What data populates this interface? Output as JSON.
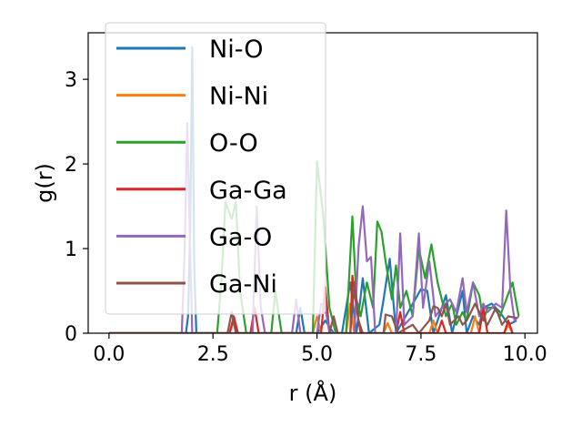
{
  "chart_data": {
    "type": "line",
    "xlabel": "r (Å)",
    "ylabel": "g(r)",
    "xlim": [
      -0.5,
      10.3
    ],
    "ylim": [
      0,
      3.55
    ],
    "xticks": [
      "0.0",
      "2.5",
      "5.0",
      "7.5",
      "10.0"
    ],
    "yticks": [
      "0",
      "1",
      "2",
      "3"
    ],
    "grid": false,
    "legend_placement": "upper-left",
    "series": [
      {
        "name": "Ni-O",
        "color": "#1f77b4",
        "points": [
          [
            0,
            0
          ],
          [
            1.85,
            0
          ],
          [
            1.9,
            0.2
          ],
          [
            1.95,
            1.2
          ],
          [
            2.0,
            3.38
          ],
          [
            2.05,
            0.8
          ],
          [
            2.1,
            0
          ],
          [
            4.5,
            0
          ],
          [
            4.6,
            0.3
          ],
          [
            4.7,
            0
          ],
          [
            5.0,
            0
          ],
          [
            5.2,
            0.15
          ],
          [
            5.4,
            0
          ],
          [
            5.6,
            0
          ],
          [
            5.8,
            0.6
          ],
          [
            5.95,
            0
          ],
          [
            6.1,
            0.65
          ],
          [
            6.25,
            0
          ],
          [
            6.5,
            0.1
          ],
          [
            6.6,
            0.4
          ],
          [
            6.75,
            0.88
          ],
          [
            6.9,
            0
          ],
          [
            7.5,
            0.52
          ],
          [
            7.65,
            0.5
          ],
          [
            7.8,
            0
          ],
          [
            8.1,
            0.45
          ],
          [
            8.25,
            0
          ],
          [
            8.5,
            0.5
          ],
          [
            8.6,
            0
          ],
          [
            8.75,
            0.2
          ],
          [
            8.9,
            0.1
          ],
          [
            9.0,
            0.3
          ],
          [
            9.2,
            0.35
          ],
          [
            9.4,
            0.25
          ],
          [
            9.6,
            0.1
          ],
          [
            9.8,
            0.15
          ]
        ]
      },
      {
        "name": "Ni-Ni",
        "color": "#ff7f0e",
        "points": [
          [
            0,
            0
          ],
          [
            2.9,
            0
          ],
          [
            3.0,
            0.15
          ],
          [
            3.1,
            0
          ],
          [
            4.9,
            0
          ],
          [
            5.0,
            0.2
          ],
          [
            5.1,
            0
          ],
          [
            5.7,
            0
          ],
          [
            5.8,
            0.35
          ],
          [
            5.9,
            0
          ],
          [
            6.6,
            0
          ],
          [
            6.7,
            0.12
          ],
          [
            6.8,
            0
          ],
          [
            7.7,
            0
          ],
          [
            7.8,
            0.15
          ],
          [
            7.9,
            0
          ],
          [
            8.7,
            0
          ],
          [
            8.8,
            0.2
          ],
          [
            8.9,
            0
          ],
          [
            9.5,
            0
          ],
          [
            9.6,
            0.1
          ],
          [
            9.7,
            0
          ]
        ]
      },
      {
        "name": "O-O",
        "color": "#2ca02c",
        "points": [
          [
            0,
            0
          ],
          [
            2.6,
            0
          ],
          [
            2.7,
            0.6
          ],
          [
            2.8,
            1.55
          ],
          [
            2.95,
            1.35
          ],
          [
            3.05,
            1.55
          ],
          [
            3.15,
            0.5
          ],
          [
            3.3,
            0
          ],
          [
            3.9,
            0
          ],
          [
            4.0,
            0.5
          ],
          [
            4.15,
            0
          ],
          [
            4.9,
            0
          ],
          [
            5.0,
            2.03
          ],
          [
            5.15,
            1.4
          ],
          [
            5.3,
            0.3
          ],
          [
            5.45,
            0
          ],
          [
            5.7,
            0
          ],
          [
            5.85,
            1.38
          ],
          [
            5.95,
            0.4
          ],
          [
            6.05,
            0.2
          ],
          [
            6.2,
            0.6
          ],
          [
            6.35,
            0.3
          ],
          [
            6.45,
            1.32
          ],
          [
            6.55,
            1.2
          ],
          [
            6.65,
            0.85
          ],
          [
            6.8,
            0.4
          ],
          [
            6.9,
            0.8
          ],
          [
            7.0,
            0.3
          ],
          [
            7.15,
            0.5
          ],
          [
            7.3,
            0.2
          ],
          [
            7.45,
            1.0
          ],
          [
            7.6,
            0.65
          ],
          [
            7.75,
            1.05
          ],
          [
            7.9,
            0.6
          ],
          [
            8.0,
            0.4
          ],
          [
            8.1,
            0.2
          ],
          [
            8.25,
            0.35
          ],
          [
            8.35,
            0.1
          ],
          [
            8.5,
            0.25
          ],
          [
            8.6,
            0.15
          ],
          [
            8.75,
            0.6
          ],
          [
            8.9,
            0.45
          ],
          [
            9.0,
            0.15
          ],
          [
            9.1,
            0.3
          ],
          [
            9.25,
            0.3
          ],
          [
            9.4,
            0.2
          ],
          [
            9.55,
            0.4
          ],
          [
            9.7,
            0.6
          ],
          [
            9.85,
            0.2
          ]
        ]
      },
      {
        "name": "Ga-Ga",
        "color": "#d62728",
        "points": [
          [
            0,
            0
          ],
          [
            2.9,
            0
          ],
          [
            3.0,
            0.2
          ],
          [
            3.1,
            0
          ],
          [
            3.4,
            0
          ],
          [
            3.5,
            0.3
          ],
          [
            3.6,
            0
          ],
          [
            5.1,
            0
          ],
          [
            5.2,
            0.55
          ],
          [
            5.3,
            0
          ],
          [
            5.8,
            0
          ],
          [
            5.85,
            0.68
          ],
          [
            5.95,
            0.3
          ],
          [
            6.05,
            0
          ],
          [
            6.9,
            0
          ],
          [
            7.0,
            0.25
          ],
          [
            7.1,
            0
          ],
          [
            7.9,
            0
          ],
          [
            8.0,
            0.15
          ],
          [
            8.1,
            0
          ],
          [
            8.9,
            0
          ],
          [
            9.0,
            0.3
          ],
          [
            9.1,
            0
          ],
          [
            9.5,
            0
          ],
          [
            9.6,
            0.15
          ],
          [
            9.7,
            0
          ]
        ]
      },
      {
        "name": "Ga-O",
        "color": "#9467bd",
        "points": [
          [
            0,
            0
          ],
          [
            1.75,
            0
          ],
          [
            1.82,
            1.0
          ],
          [
            1.88,
            2.48
          ],
          [
            1.95,
            1.0
          ],
          [
            2.0,
            0
          ],
          [
            3.45,
            0
          ],
          [
            3.55,
            1.5
          ],
          [
            3.65,
            0.3
          ],
          [
            3.75,
            0
          ],
          [
            4.4,
            0
          ],
          [
            4.5,
            0.4
          ],
          [
            4.6,
            0
          ],
          [
            5.0,
            0
          ],
          [
            5.1,
            0.35
          ],
          [
            5.2,
            0.3
          ],
          [
            5.3,
            0
          ],
          [
            5.9,
            0
          ],
          [
            6.0,
            1.02
          ],
          [
            6.1,
            1.5
          ],
          [
            6.2,
            0.85
          ],
          [
            6.3,
            0.9
          ],
          [
            6.4,
            0
          ],
          [
            6.9,
            0
          ],
          [
            7.0,
            1.18
          ],
          [
            7.1,
            0.1
          ],
          [
            7.3,
            0.2
          ],
          [
            7.45,
            1.18
          ],
          [
            7.55,
            0.3
          ],
          [
            7.7,
            0.85
          ],
          [
            7.85,
            0.2
          ],
          [
            8.0,
            0.3
          ],
          [
            8.2,
            0.4
          ],
          [
            8.35,
            0.25
          ],
          [
            8.5,
            0.65
          ],
          [
            8.6,
            0.25
          ],
          [
            8.75,
            0.6
          ],
          [
            8.9,
            0.2
          ],
          [
            9.0,
            0.35
          ],
          [
            9.1,
            0.25
          ],
          [
            9.3,
            0.35
          ],
          [
            9.45,
            0.3
          ],
          [
            9.55,
            1.45
          ],
          [
            9.65,
            0.5
          ],
          [
            9.75,
            0.15
          ],
          [
            9.85,
            0.2
          ]
        ]
      },
      {
        "name": "Ga-Ni",
        "color": "#8c564b",
        "points": [
          [
            0,
            0
          ],
          [
            2.85,
            0
          ],
          [
            2.95,
            0.25
          ],
          [
            3.05,
            0
          ],
          [
            5.3,
            0
          ],
          [
            5.4,
            0.2
          ],
          [
            5.5,
            0
          ],
          [
            5.8,
            0
          ],
          [
            5.9,
            0.6
          ],
          [
            6.0,
            0.15
          ],
          [
            6.1,
            0
          ],
          [
            6.6,
            0
          ],
          [
            6.65,
            0.22
          ],
          [
            6.8,
            0.2
          ],
          [
            6.95,
            0
          ],
          [
            7.3,
            0.1
          ],
          [
            7.45,
            0
          ],
          [
            7.7,
            0.15
          ],
          [
            7.8,
            0.32
          ],
          [
            7.9,
            0.3
          ],
          [
            8.0,
            0.2
          ],
          [
            8.1,
            0.35
          ],
          [
            8.2,
            0.1
          ],
          [
            8.4,
            0.2
          ],
          [
            8.5,
            0.1
          ],
          [
            8.6,
            0.15
          ],
          [
            8.8,
            0.35
          ],
          [
            8.95,
            0.2
          ],
          [
            9.1,
            0.1
          ],
          [
            9.3,
            0.3
          ],
          [
            9.45,
            0.1
          ],
          [
            9.6,
            0.2
          ],
          [
            9.8,
            0.18
          ]
        ]
      }
    ]
  }
}
